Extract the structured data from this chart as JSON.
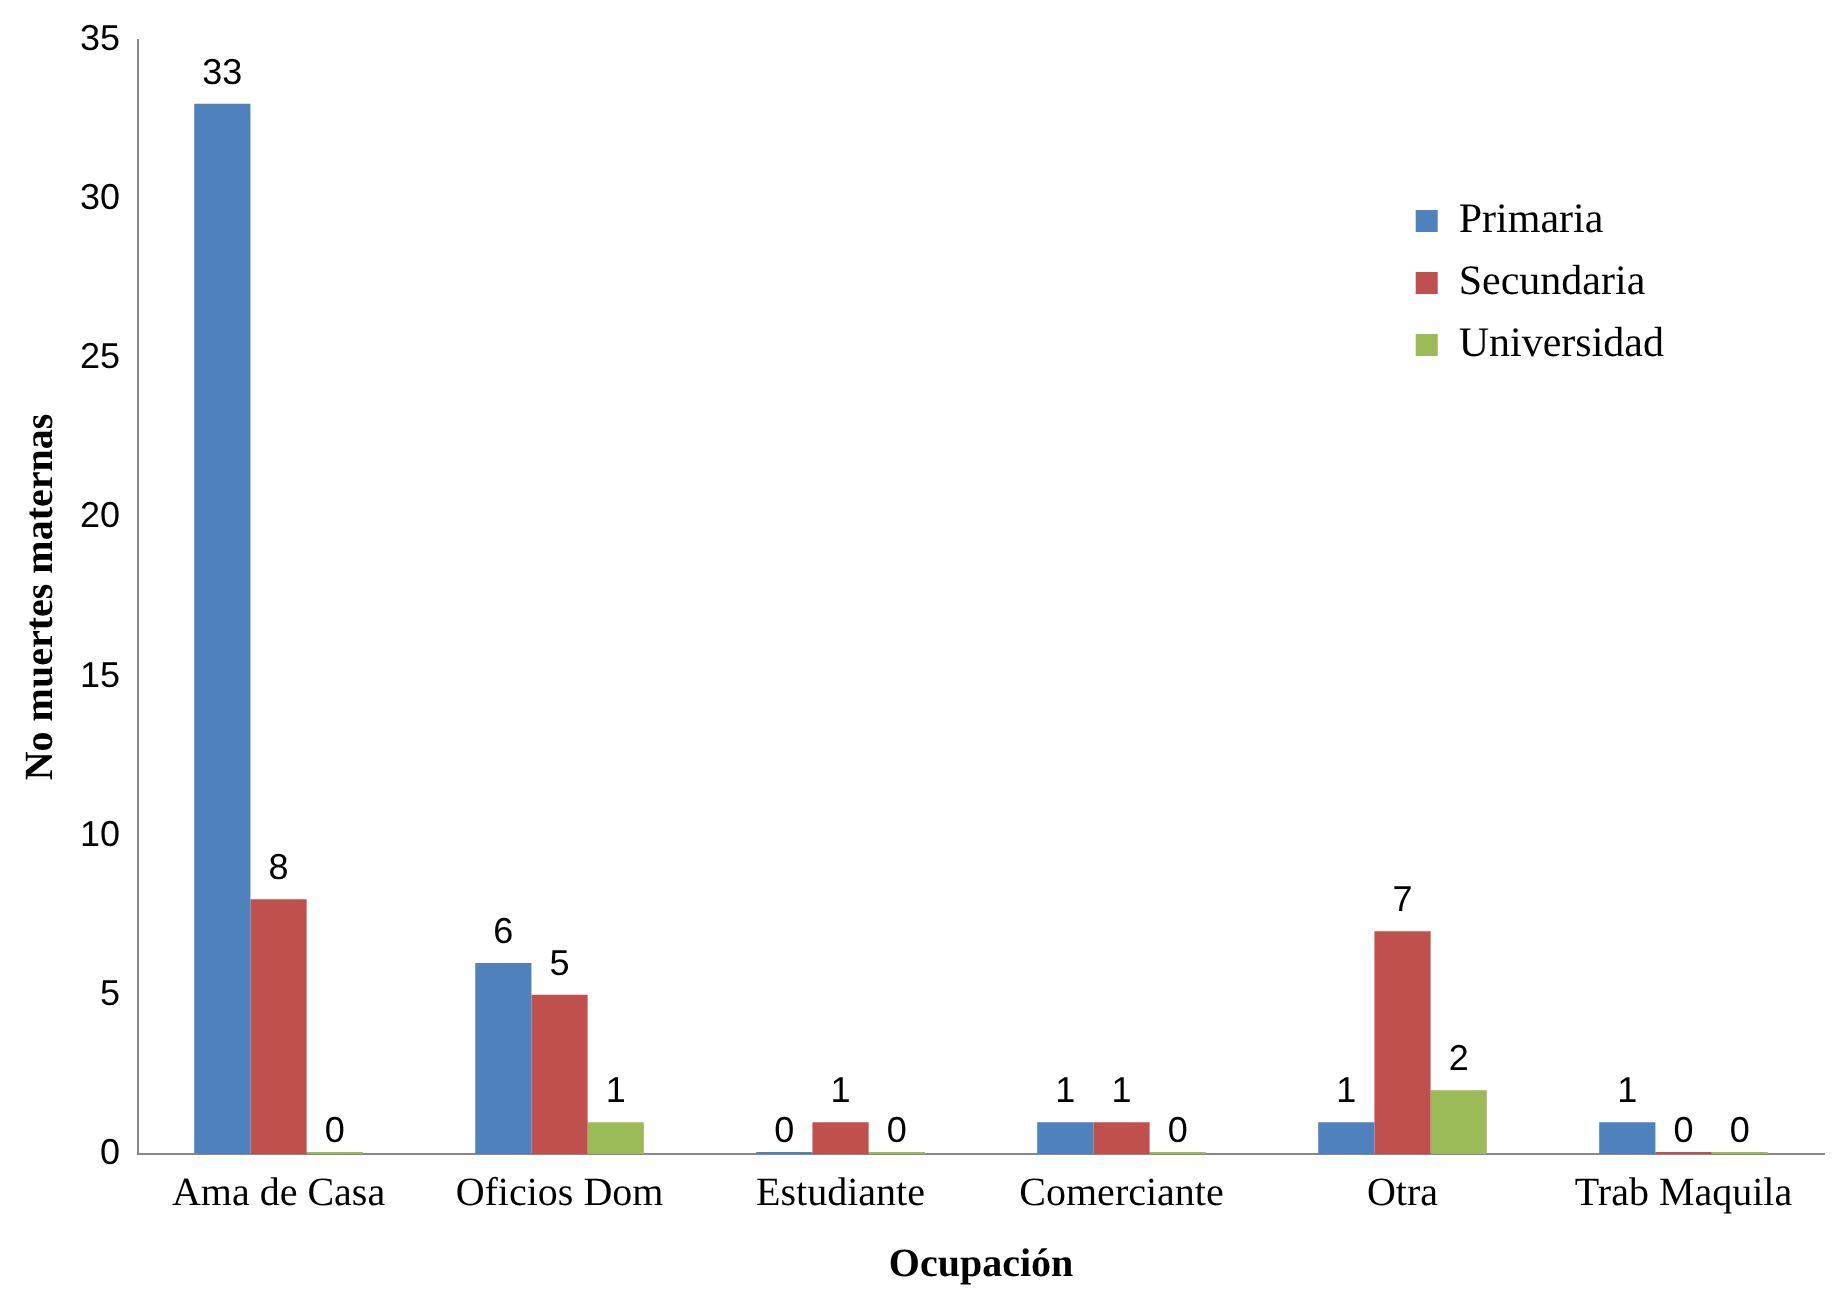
{
  "chart_data": {
    "type": "bar",
    "xlabel": "Ocupación",
    "ylabel": "No muertes maternas",
    "categories": [
      "Ama de Casa",
      "Oficios Dom",
      "Estudiante",
      "Comerciante",
      "Otra",
      "Trab Maquila"
    ],
    "series": [
      {
        "name": "Primaria",
        "color": "#4f81bd",
        "values": [
          33,
          6,
          0,
          1,
          1,
          1
        ]
      },
      {
        "name": "Secundaria",
        "color": "#c0504d",
        "values": [
          8,
          5,
          1,
          1,
          7,
          0
        ]
      },
      {
        "name": "Universidad",
        "color": "#9bbb59",
        "values": [
          0,
          1,
          0,
          0,
          2,
          0
        ]
      }
    ],
    "ylim": [
      0,
      35
    ],
    "yticks": [
      0,
      5,
      10,
      15,
      20,
      25,
      30,
      35
    ],
    "grid": false,
    "legend": "top right",
    "data_labels": true
  }
}
